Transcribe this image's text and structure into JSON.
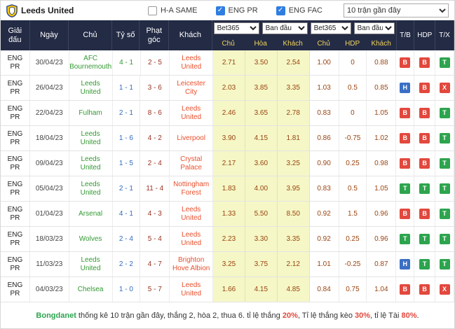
{
  "header": {
    "title": "Leeds United",
    "checkboxes": [
      {
        "label": "H-A SAME",
        "checked": false
      },
      {
        "label": "ENG PR",
        "checked": true
      },
      {
        "label": "ENG FAC",
        "checked": true
      }
    ],
    "range_select": "10 trận gần đây"
  },
  "table": {
    "columns": [
      "Giải đấu",
      "Ngày",
      "Chủ",
      "Tỷ số",
      "Phạt góc",
      "Khách"
    ],
    "odds_selects": [
      "Bet365",
      "Ban đầu",
      "Bet365",
      "Ban đầu"
    ],
    "sub_headers": [
      "Chủ",
      "Hòa",
      "Khách",
      "Chủ",
      "HDP",
      "Khách"
    ],
    "result_columns": [
      "T/B",
      "HDP",
      "T/X"
    ],
    "rows": [
      {
        "league": "ENG PR",
        "date": "30/04/23",
        "home": "AFC Bournemouth",
        "score": "4 - 1",
        "score_color": "green",
        "corners": "2 - 5",
        "away": "Leeds United",
        "odds_1x2": [
          "2.71",
          "3.50",
          "2.54"
        ],
        "odds_hdp": [
          "1.00",
          "0",
          "0.88"
        ],
        "results": [
          {
            "letter": "B",
            "color": "red"
          },
          {
            "letter": "B",
            "color": "red"
          },
          {
            "letter": "T",
            "color": "green"
          }
        ]
      },
      {
        "league": "ENG PR",
        "date": "26/04/23",
        "home": "Leeds United",
        "score": "1 - 1",
        "score_color": "blue",
        "corners": "3 - 6",
        "away": "Leicester City",
        "odds_1x2": [
          "2.03",
          "3.85",
          "3.35"
        ],
        "odds_hdp": [
          "1.03",
          "0.5",
          "0.85"
        ],
        "results": [
          {
            "letter": "H",
            "color": "blue"
          },
          {
            "letter": "B",
            "color": "red"
          },
          {
            "letter": "X",
            "color": "red"
          }
        ]
      },
      {
        "league": "ENG PR",
        "date": "22/04/23",
        "home": "Fulham",
        "score": "2 - 1",
        "score_color": "blue",
        "corners": "8 - 6",
        "away": "Leeds United",
        "odds_1x2": [
          "2.46",
          "3.65",
          "2.78"
        ],
        "odds_hdp": [
          "0.83",
          "0",
          "1.05"
        ],
        "results": [
          {
            "letter": "B",
            "color": "red"
          },
          {
            "letter": "B",
            "color": "red"
          },
          {
            "letter": "T",
            "color": "green"
          }
        ]
      },
      {
        "league": "ENG PR",
        "date": "18/04/23",
        "home": "Leeds United",
        "score": "1 - 6",
        "score_color": "blue",
        "corners": "4 - 2",
        "away": "Liverpool",
        "odds_1x2": [
          "3.90",
          "4.15",
          "1.81"
        ],
        "odds_hdp": [
          "0.86",
          "-0.75",
          "1.02"
        ],
        "results": [
          {
            "letter": "B",
            "color": "red"
          },
          {
            "letter": "B",
            "color": "red"
          },
          {
            "letter": "T",
            "color": "green"
          }
        ]
      },
      {
        "league": "ENG PR",
        "date": "09/04/23",
        "home": "Leeds United",
        "score": "1 - 5",
        "score_color": "blue",
        "corners": "2 - 4",
        "away": "Crystal Palace",
        "odds_1x2": [
          "2.17",
          "3.60",
          "3.25"
        ],
        "odds_hdp": [
          "0.90",
          "0.25",
          "0.98"
        ],
        "results": [
          {
            "letter": "B",
            "color": "red"
          },
          {
            "letter": "B",
            "color": "red"
          },
          {
            "letter": "T",
            "color": "green"
          }
        ]
      },
      {
        "league": "ENG PR",
        "date": "05/04/23",
        "home": "Leeds United",
        "score": "2 - 1",
        "score_color": "blue",
        "corners": "11 - 4",
        "away": "Nottingham Forest",
        "odds_1x2": [
          "1.83",
          "4.00",
          "3.95"
        ],
        "odds_hdp": [
          "0.83",
          "0.5",
          "1.05"
        ],
        "results": [
          {
            "letter": "T",
            "color": "green"
          },
          {
            "letter": "T",
            "color": "green"
          },
          {
            "letter": "T",
            "color": "green"
          }
        ]
      },
      {
        "league": "ENG PR",
        "date": "01/04/23",
        "home": "Arsenal",
        "score": "4 - 1",
        "score_color": "blue",
        "corners": "4 - 3",
        "away": "Leeds United",
        "odds_1x2": [
          "1.33",
          "5.50",
          "8.50"
        ],
        "odds_hdp": [
          "0.92",
          "1.5",
          "0.96"
        ],
        "results": [
          {
            "letter": "B",
            "color": "red"
          },
          {
            "letter": "B",
            "color": "red"
          },
          {
            "letter": "T",
            "color": "green"
          }
        ]
      },
      {
        "league": "ENG PR",
        "date": "18/03/23",
        "home": "Wolves",
        "score": "2 - 4",
        "score_color": "blue",
        "corners": "5 - 4",
        "away": "Leeds United",
        "odds_1x2": [
          "2.23",
          "3.30",
          "3.35"
        ],
        "odds_hdp": [
          "0.92",
          "0.25",
          "0.96"
        ],
        "results": [
          {
            "letter": "T",
            "color": "green"
          },
          {
            "letter": "T",
            "color": "green"
          },
          {
            "letter": "T",
            "color": "green"
          }
        ]
      },
      {
        "league": "ENG PR",
        "date": "11/03/23",
        "home": "Leeds United",
        "score": "2 - 2",
        "score_color": "blue",
        "corners": "4 - 7",
        "away": "Brighton Hove Albion",
        "odds_1x2": [
          "3.25",
          "3.75",
          "2.12"
        ],
        "odds_hdp": [
          "1.01",
          "-0.25",
          "0.87"
        ],
        "results": [
          {
            "letter": "H",
            "color": "blue"
          },
          {
            "letter": "T",
            "color": "green"
          },
          {
            "letter": "T",
            "color": "green"
          }
        ]
      },
      {
        "league": "ENG PR",
        "date": "04/03/23",
        "home": "Chelsea",
        "score": "1 - 0",
        "score_color": "blue",
        "corners": "5 - 7",
        "away": "Leeds United",
        "odds_1x2": [
          "1.66",
          "4.15",
          "4.85"
        ],
        "odds_hdp": [
          "0.84",
          "0.75",
          "1.04"
        ],
        "results": [
          {
            "letter": "B",
            "color": "red"
          },
          {
            "letter": "B",
            "color": "red"
          },
          {
            "letter": "X",
            "color": "red"
          }
        ]
      }
    ]
  },
  "footer": {
    "segments": [
      {
        "text": "Bongdanet",
        "style": "brand"
      },
      {
        "text": " thống kê 10 trận gần đây, thắng 2, hòa 2, thua 6. tỉ lệ thắng ",
        "style": "normal"
      },
      {
        "text": "20%",
        "style": "highlight"
      },
      {
        "text": ", Tỉ lệ thắng kèo ",
        "style": "normal"
      },
      {
        "text": "30%",
        "style": "highlight"
      },
      {
        "text": ", tỉ lệ Tài ",
        "style": "normal"
      },
      {
        "text": "80%",
        "style": "highlight"
      },
      {
        "text": ".",
        "style": "normal"
      }
    ]
  },
  "colors": {
    "red": "#e2483d",
    "green": "#2da44e",
    "blue": "#3a6fc4"
  }
}
